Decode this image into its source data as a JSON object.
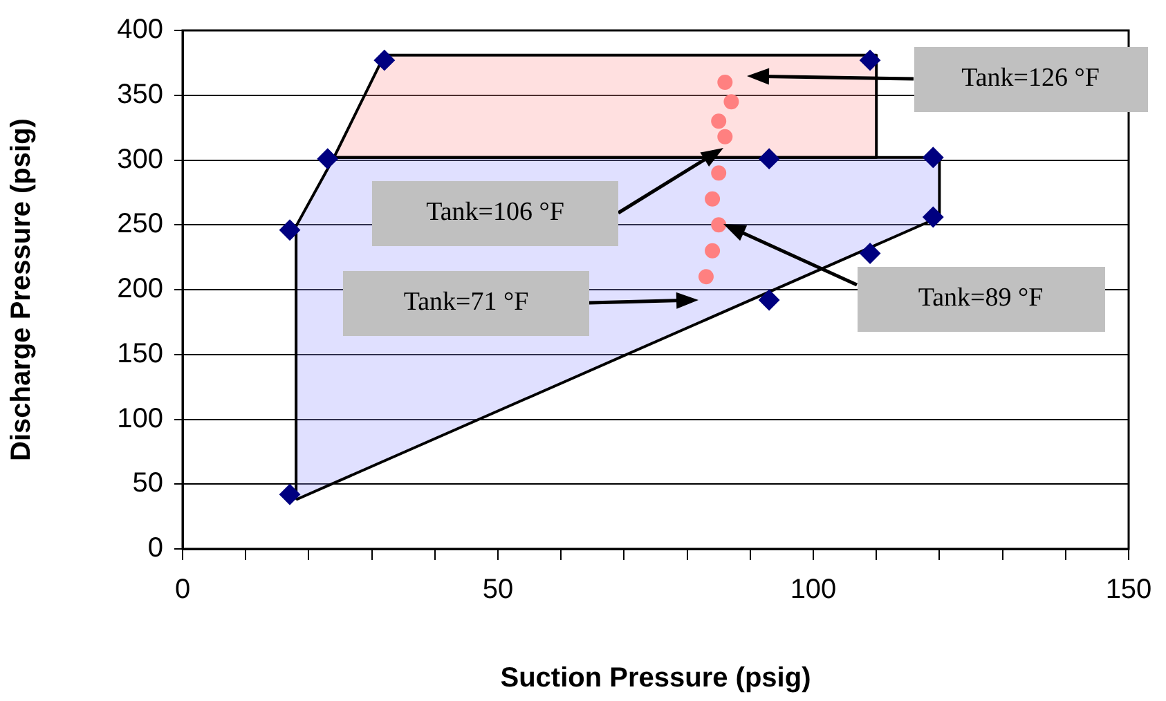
{
  "chart_data": {
    "type": "scatter",
    "xlabel": "Suction Pressure (psig)",
    "ylabel": "Discharge Pressure (psig)",
    "xlim": [
      0,
      150
    ],
    "ylim": [
      0,
      400
    ],
    "xticks": [
      0,
      {
        "value": 10,
        "label": null
      },
      {
        "value": 20,
        "label": null
      },
      {
        "value": 30,
        "label": null
      },
      {
        "value": 40,
        "label": null
      },
      50,
      {
        "value": 60,
        "label": null
      },
      {
        "value": 70,
        "label": null
      },
      {
        "value": 80,
        "label": null
      },
      {
        "value": 90,
        "label": null
      },
      100,
      {
        "value": 110,
        "label": null
      },
      {
        "value": 120,
        "label": null
      },
      {
        "value": 130,
        "label": null
      },
      {
        "value": 140,
        "label": null
      },
      150
    ],
    "yticks": [
      0,
      50,
      100,
      150,
      200,
      250,
      300,
      350,
      400
    ],
    "grid": "y",
    "legend": false,
    "marker": "diamond",
    "series": [
      {
        "type": "area",
        "marker": "none",
        "color": "#ff9999",
        "x": [
          32,
          110,
          110,
          24,
          32
        ],
        "values": [
          381,
          381,
          302,
          302,
          381
        ]
      },
      {
        "type": "area",
        "marker": "none",
        "color": "#9999ff",
        "x": [
          18,
          18,
          24,
          120,
          120,
          18
        ],
        "values": [
          38,
          249,
          302,
          302,
          256,
          38
        ]
      },
      {
        "color": "#ff8080",
        "marker": "circle",
        "x": [
          86,
          87,
          85,
          86,
          85,
          84,
          85,
          84,
          83
        ],
        "values": [
          360,
          345,
          330,
          318,
          290,
          270,
          250,
          230,
          210
        ]
      },
      {
        "color": "#000080",
        "x": [
          32,
          23,
          17,
          17,
          109,
          119,
          119,
          109,
          93,
          93
        ],
        "values": [
          377,
          301,
          246,
          42,
          377,
          302,
          256,
          228,
          192,
          301
        ]
      }
    ],
    "annotations": [
      "Tank=126 °F",
      "Tank=106 °F",
      "Tank=71 °F",
      "Tank=89 °F"
    ]
  }
}
